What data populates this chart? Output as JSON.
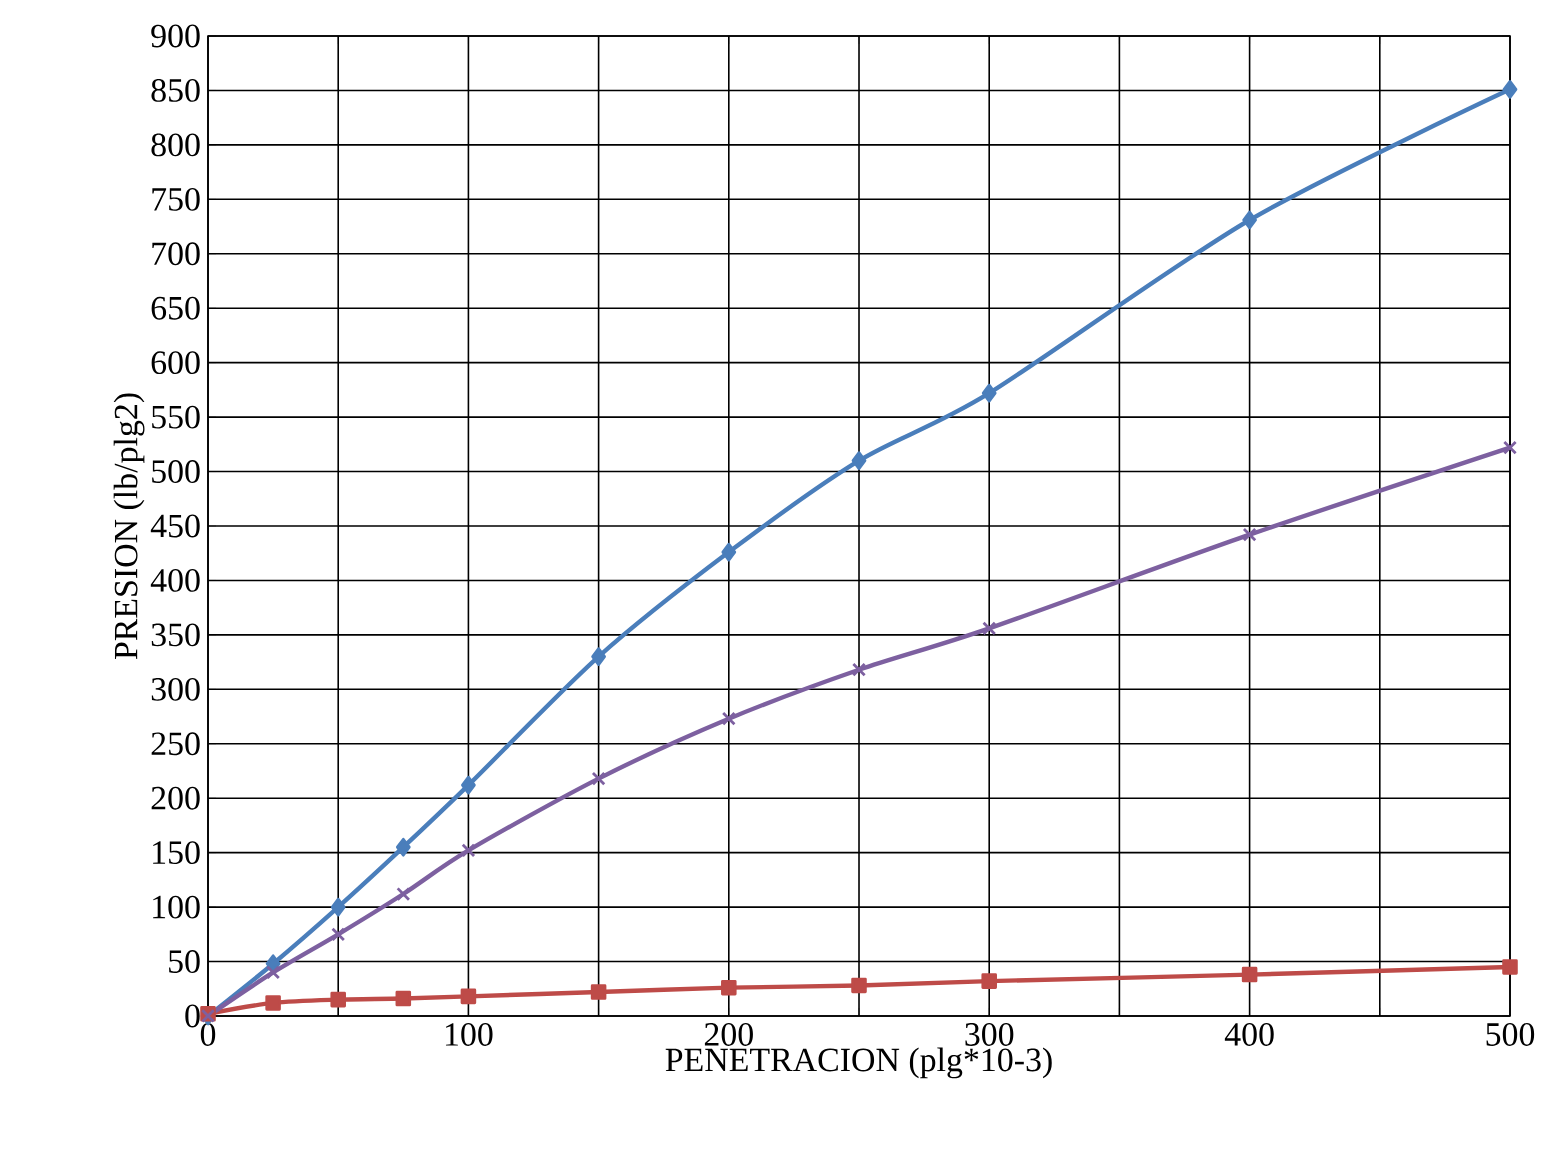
{
  "chart_data": {
    "type": "line",
    "xlabel": "PENETRACION (plg*10-3)",
    "ylabel": "PRESION (lb/plg2)",
    "xlim": [
      0,
      500
    ],
    "ylim": [
      0,
      900
    ],
    "xticks": [
      0,
      {
        "value": 50,
        "label": null
      },
      100,
      {
        "value": 150,
        "label": null
      },
      200,
      {
        "value": 250,
        "label": null
      },
      300,
      {
        "value": 350,
        "label": null
      },
      400,
      {
        "value": 450,
        "label": null
      },
      500
    ],
    "yticks": [
      0,
      50,
      100,
      150,
      200,
      250,
      300,
      350,
      400,
      450,
      500,
      550,
      600,
      650,
      700,
      750,
      800,
      850,
      900
    ],
    "grid": true,
    "series": [
      {
        "color": "#4a7ebb",
        "marker": "diamond",
        "x": [
          0,
          25,
          50,
          75,
          100,
          150,
          200,
          250,
          300,
          400,
          500
        ],
        "values": [
          0,
          48,
          100,
          155,
          212,
          330,
          426,
          510,
          572,
          731,
          851
        ]
      },
      {
        "color": "#be4b48",
        "marker": "square",
        "x": [
          0,
          25,
          50,
          75,
          100,
          150,
          200,
          250,
          300,
          400,
          500
        ],
        "values": [
          2,
          12,
          15,
          16,
          18,
          22,
          26,
          28,
          32,
          38,
          45
        ]
      },
      {
        "color": "#7d60a0",
        "marker": "cross",
        "x": [
          0,
          25,
          50,
          75,
          100,
          150,
          200,
          250,
          300,
          400,
          500
        ],
        "values": [
          0,
          40,
          75,
          112,
          152,
          218,
          273,
          318,
          356,
          442,
          522
        ]
      }
    ]
  }
}
